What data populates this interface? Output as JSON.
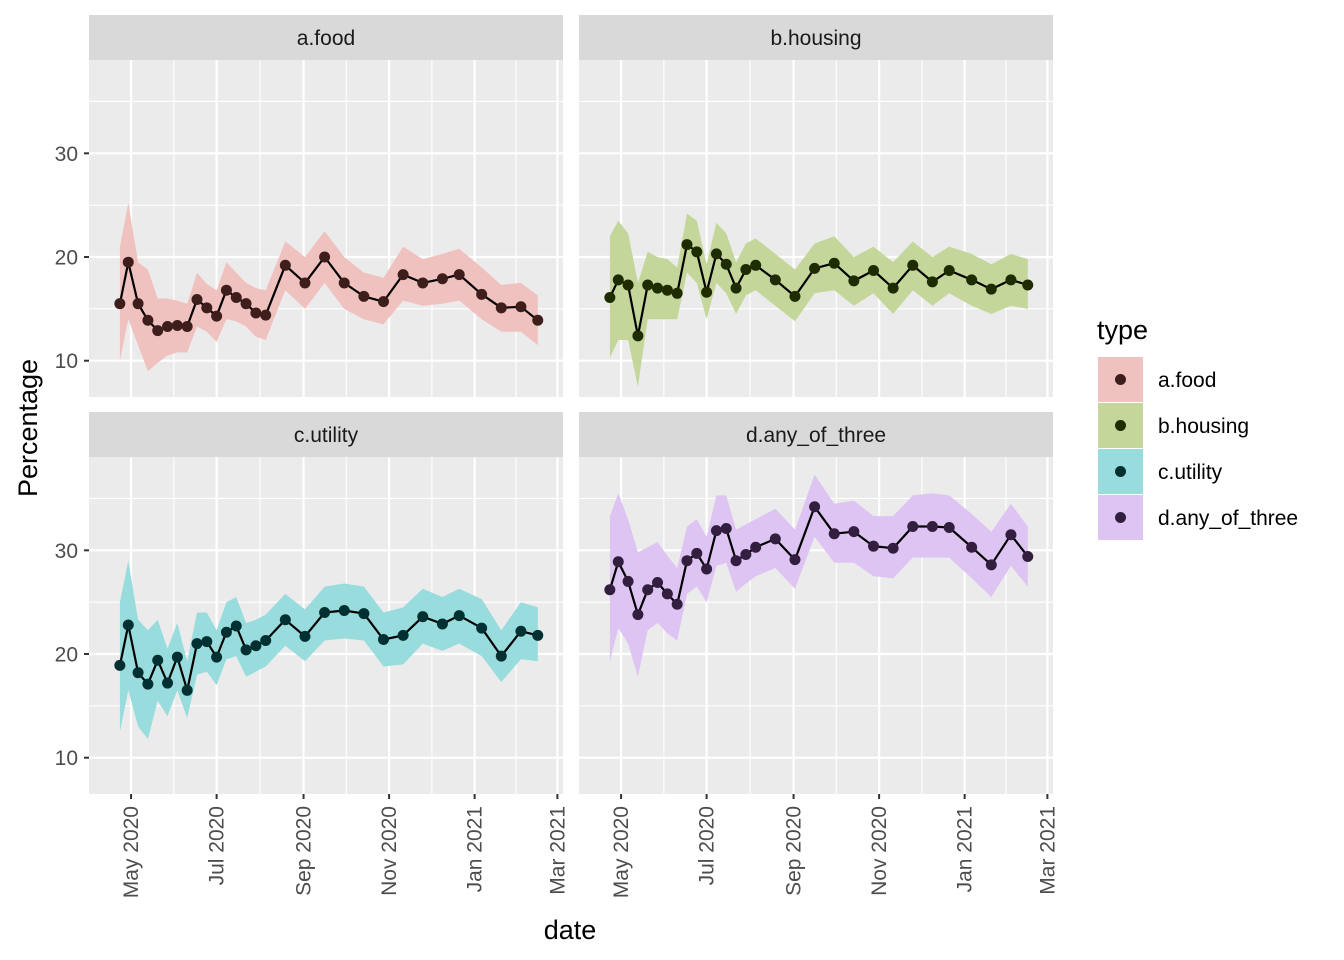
{
  "chart_data": {
    "type": "line",
    "xlabel": "date",
    "ylabel": "Percentage",
    "ylim": [
      6.5,
      39
    ],
    "xlim": [
      "2020-04-01",
      "2021-03-05"
    ],
    "y_ticks": [
      10,
      20,
      30
    ],
    "x_ticks": [
      {
        "date": "2020-05-01",
        "label": "May 2020"
      },
      {
        "date": "2020-07-01",
        "label": "Jul 2020"
      },
      {
        "date": "2020-09-01",
        "label": "Sep 2020"
      },
      {
        "date": "2020-11-01",
        "label": "Nov 2020"
      },
      {
        "date": "2021-01-01",
        "label": "Jan 2021"
      },
      {
        "date": "2021-03-01",
        "label": "Mar 2021"
      }
    ],
    "legend": {
      "title": "type",
      "position": "right"
    },
    "grid": true,
    "panels": [
      {
        "name": "a.food",
        "fill": "#F8766D",
        "points": [
          {
            "x": "2020-04-23",
            "y": 15.5,
            "lo": 10.0,
            "hi": 21.0
          },
          {
            "x": "2020-04-29",
            "y": 19.5,
            "lo": 14.0,
            "hi": 25.2
          },
          {
            "x": "2020-05-06",
            "y": 15.5,
            "lo": 11.5,
            "hi": 19.5
          },
          {
            "x": "2020-05-13",
            "y": 13.9,
            "lo": 9.0,
            "hi": 18.8
          },
          {
            "x": "2020-05-20",
            "y": 12.9,
            "lo": 9.8,
            "hi": 16.0
          },
          {
            "x": "2020-05-27",
            "y": 13.3,
            "lo": 10.5,
            "hi": 16.0
          },
          {
            "x": "2020-06-03",
            "y": 13.4,
            "lo": 10.8,
            "hi": 15.8
          },
          {
            "x": "2020-06-10",
            "y": 13.3,
            "lo": 10.8,
            "hi": 15.5
          },
          {
            "x": "2020-06-17",
            "y": 15.9,
            "lo": 13.3,
            "hi": 18.5
          },
          {
            "x": "2020-06-24",
            "y": 15.1,
            "lo": 12.8,
            "hi": 17.4
          },
          {
            "x": "2020-07-01",
            "y": 14.3,
            "lo": 11.8,
            "hi": 16.8
          },
          {
            "x": "2020-07-08",
            "y": 16.8,
            "lo": 14.0,
            "hi": 19.5
          },
          {
            "x": "2020-07-15",
            "y": 16.1,
            "lo": 13.8,
            "hi": 18.5
          },
          {
            "x": "2020-07-22",
            "y": 15.5,
            "lo": 13.3,
            "hi": 17.5
          },
          {
            "x": "2020-07-29",
            "y": 14.6,
            "lo": 12.3,
            "hi": 17.0
          },
          {
            "x": "2020-08-05",
            "y": 14.4,
            "lo": 12.0,
            "hi": 16.8
          },
          {
            "x": "2020-08-19",
            "y": 19.2,
            "lo": 16.8,
            "hi": 21.5
          },
          {
            "x": "2020-09-02",
            "y": 17.5,
            "lo": 15.0,
            "hi": 20.0
          },
          {
            "x": "2020-09-16",
            "y": 20.0,
            "lo": 17.5,
            "hi": 22.5
          },
          {
            "x": "2020-09-30",
            "y": 17.5,
            "lo": 15.0,
            "hi": 20.0
          },
          {
            "x": "2020-10-14",
            "y": 16.2,
            "lo": 14.0,
            "hi": 18.5
          },
          {
            "x": "2020-10-28",
            "y": 15.7,
            "lo": 13.5,
            "hi": 18.0
          },
          {
            "x": "2020-11-11",
            "y": 18.3,
            "lo": 15.8,
            "hi": 21.0
          },
          {
            "x": "2020-11-25",
            "y": 17.5,
            "lo": 15.3,
            "hi": 19.8
          },
          {
            "x": "2020-12-09",
            "y": 17.9,
            "lo": 15.5,
            "hi": 20.3
          },
          {
            "x": "2020-12-21",
            "y": 18.3,
            "lo": 15.8,
            "hi": 20.8
          },
          {
            "x": "2021-01-06",
            "y": 16.4,
            "lo": 14.0,
            "hi": 19.0
          },
          {
            "x": "2021-01-20",
            "y": 15.1,
            "lo": 12.8,
            "hi": 17.3
          },
          {
            "x": "2021-02-03",
            "y": 15.2,
            "lo": 12.8,
            "hi": 17.5
          },
          {
            "x": "2021-02-15",
            "y": 13.9,
            "lo": 11.5,
            "hi": 16.3
          }
        ]
      },
      {
        "name": "b.housing",
        "fill": "#7CAE00",
        "points": [
          {
            "x": "2020-04-23",
            "y": 16.1,
            "lo": 10.3,
            "hi": 22.0
          },
          {
            "x": "2020-04-29",
            "y": 17.8,
            "lo": 12.0,
            "hi": 23.5
          },
          {
            "x": "2020-05-06",
            "y": 17.3,
            "lo": 12.0,
            "hi": 22.3
          },
          {
            "x": "2020-05-13",
            "y": 12.4,
            "lo": 7.5,
            "hi": 17.5
          },
          {
            "x": "2020-05-20",
            "y": 17.3,
            "lo": 14.0,
            "hi": 20.5
          },
          {
            "x": "2020-05-27",
            "y": 17.0,
            "lo": 14.0,
            "hi": 20.0
          },
          {
            "x": "2020-06-03",
            "y": 16.8,
            "lo": 14.0,
            "hi": 19.8
          },
          {
            "x": "2020-06-10",
            "y": 16.5,
            "lo": 14.0,
            "hi": 19.0
          },
          {
            "x": "2020-06-17",
            "y": 21.2,
            "lo": 18.5,
            "hi": 24.2
          },
          {
            "x": "2020-06-24",
            "y": 20.5,
            "lo": 17.5,
            "hi": 23.5
          },
          {
            "x": "2020-07-01",
            "y": 16.6,
            "lo": 14.0,
            "hi": 19.3
          },
          {
            "x": "2020-07-08",
            "y": 20.3,
            "lo": 17.5,
            "hi": 23.3
          },
          {
            "x": "2020-07-15",
            "y": 19.3,
            "lo": 16.5,
            "hi": 22.3
          },
          {
            "x": "2020-07-22",
            "y": 17.0,
            "lo": 14.5,
            "hi": 19.5
          },
          {
            "x": "2020-07-29",
            "y": 18.8,
            "lo": 16.3,
            "hi": 21.3
          },
          {
            "x": "2020-08-05",
            "y": 19.2,
            "lo": 16.8,
            "hi": 21.8
          },
          {
            "x": "2020-08-19",
            "y": 17.8,
            "lo": 15.3,
            "hi": 20.3
          },
          {
            "x": "2020-09-02",
            "y": 16.2,
            "lo": 13.8,
            "hi": 18.8
          },
          {
            "x": "2020-09-16",
            "y": 18.9,
            "lo": 16.5,
            "hi": 21.3
          },
          {
            "x": "2020-09-30",
            "y": 19.4,
            "lo": 16.8,
            "hi": 22.0
          },
          {
            "x": "2020-10-14",
            "y": 17.7,
            "lo": 15.3,
            "hi": 20.0
          },
          {
            "x": "2020-10-28",
            "y": 18.7,
            "lo": 16.5,
            "hi": 21.0
          },
          {
            "x": "2020-11-11",
            "y": 17.0,
            "lo": 14.5,
            "hi": 19.5
          },
          {
            "x": "2020-11-25",
            "y": 19.2,
            "lo": 16.8,
            "hi": 21.5
          },
          {
            "x": "2020-12-09",
            "y": 17.6,
            "lo": 15.3,
            "hi": 20.0
          },
          {
            "x": "2020-12-21",
            "y": 18.7,
            "lo": 16.5,
            "hi": 21.0
          },
          {
            "x": "2021-01-06",
            "y": 17.8,
            "lo": 15.3,
            "hi": 20.3
          },
          {
            "x": "2021-01-20",
            "y": 16.9,
            "lo": 14.5,
            "hi": 19.3
          },
          {
            "x": "2021-02-03",
            "y": 17.8,
            "lo": 15.3,
            "hi": 20.3
          },
          {
            "x": "2021-02-15",
            "y": 17.3,
            "lo": 15.0,
            "hi": 19.8
          }
        ]
      },
      {
        "name": "c.utility",
        "fill": "#00BFC4",
        "points": [
          {
            "x": "2020-04-23",
            "y": 18.9,
            "lo": 12.5,
            "hi": 25.0
          },
          {
            "x": "2020-04-29",
            "y": 22.8,
            "lo": 16.5,
            "hi": 29.0
          },
          {
            "x": "2020-05-06",
            "y": 18.2,
            "lo": 13.0,
            "hi": 23.3
          },
          {
            "x": "2020-05-13",
            "y": 17.1,
            "lo": 11.8,
            "hi": 22.3
          },
          {
            "x": "2020-05-20",
            "y": 19.4,
            "lo": 15.5,
            "hi": 23.3
          },
          {
            "x": "2020-05-27",
            "y": 17.2,
            "lo": 14.0,
            "hi": 20.5
          },
          {
            "x": "2020-06-03",
            "y": 19.7,
            "lo": 16.5,
            "hi": 23.0
          },
          {
            "x": "2020-06-10",
            "y": 16.5,
            "lo": 13.8,
            "hi": 19.3
          },
          {
            "x": "2020-06-17",
            "y": 21.0,
            "lo": 18.0,
            "hi": 24.0
          },
          {
            "x": "2020-06-24",
            "y": 21.2,
            "lo": 18.3,
            "hi": 24.0
          },
          {
            "x": "2020-07-01",
            "y": 19.7,
            "lo": 17.0,
            "hi": 22.3
          },
          {
            "x": "2020-07-08",
            "y": 22.1,
            "lo": 19.5,
            "hi": 25.0
          },
          {
            "x": "2020-07-15",
            "y": 22.7,
            "lo": 19.8,
            "hi": 25.5
          },
          {
            "x": "2020-07-22",
            "y": 20.4,
            "lo": 17.8,
            "hi": 23.0
          },
          {
            "x": "2020-07-29",
            "y": 20.8,
            "lo": 18.3,
            "hi": 23.3
          },
          {
            "x": "2020-08-05",
            "y": 21.3,
            "lo": 18.8,
            "hi": 23.8
          },
          {
            "x": "2020-08-19",
            "y": 23.3,
            "lo": 20.8,
            "hi": 25.8
          },
          {
            "x": "2020-09-02",
            "y": 21.7,
            "lo": 19.3,
            "hi": 24.3
          },
          {
            "x": "2020-09-16",
            "y": 24.0,
            "lo": 21.3,
            "hi": 26.5
          },
          {
            "x": "2020-09-30",
            "y": 24.2,
            "lo": 21.5,
            "hi": 26.8
          },
          {
            "x": "2020-10-14",
            "y": 23.9,
            "lo": 21.3,
            "hi": 26.5
          },
          {
            "x": "2020-10-28",
            "y": 21.4,
            "lo": 18.8,
            "hi": 24.0
          },
          {
            "x": "2020-11-11",
            "y": 21.8,
            "lo": 19.0,
            "hi": 24.5
          },
          {
            "x": "2020-11-25",
            "y": 23.6,
            "lo": 21.0,
            "hi": 26.3
          },
          {
            "x": "2020-12-09",
            "y": 22.9,
            "lo": 20.3,
            "hi": 25.5
          },
          {
            "x": "2020-12-21",
            "y": 23.7,
            "lo": 21.0,
            "hi": 26.3
          },
          {
            "x": "2021-01-06",
            "y": 22.5,
            "lo": 19.8,
            "hi": 25.3
          },
          {
            "x": "2021-01-20",
            "y": 19.8,
            "lo": 17.3,
            "hi": 22.3
          },
          {
            "x": "2021-02-03",
            "y": 22.2,
            "lo": 19.5,
            "hi": 25.0
          },
          {
            "x": "2021-02-15",
            "y": 21.8,
            "lo": 19.3,
            "hi": 24.5
          }
        ]
      },
      {
        "name": "d.any_of_three",
        "fill": "#C77CFF",
        "points": [
          {
            "x": "2020-04-23",
            "y": 26.2,
            "lo": 19.3,
            "hi": 33.3
          },
          {
            "x": "2020-04-29",
            "y": 28.9,
            "lo": 22.5,
            "hi": 35.5
          },
          {
            "x": "2020-05-06",
            "y": 27.0,
            "lo": 21.0,
            "hi": 33.0
          },
          {
            "x": "2020-05-13",
            "y": 23.8,
            "lo": 17.8,
            "hi": 29.8
          },
          {
            "x": "2020-05-20",
            "y": 26.2,
            "lo": 22.3,
            "hi": 30.3
          },
          {
            "x": "2020-05-27",
            "y": 26.9,
            "lo": 23.0,
            "hi": 30.8
          },
          {
            "x": "2020-06-03",
            "y": 25.8,
            "lo": 22.0,
            "hi": 29.5
          },
          {
            "x": "2020-06-10",
            "y": 24.8,
            "lo": 21.3,
            "hi": 28.3
          },
          {
            "x": "2020-06-17",
            "y": 29.0,
            "lo": 25.8,
            "hi": 32.3
          },
          {
            "x": "2020-06-24",
            "y": 29.7,
            "lo": 26.5,
            "hi": 33.0
          },
          {
            "x": "2020-07-01",
            "y": 28.2,
            "lo": 25.0,
            "hi": 31.3
          },
          {
            "x": "2020-07-08",
            "y": 31.9,
            "lo": 28.5,
            "hi": 35.3
          },
          {
            "x": "2020-07-15",
            "y": 32.1,
            "lo": 28.8,
            "hi": 35.3
          },
          {
            "x": "2020-07-22",
            "y": 29.0,
            "lo": 26.0,
            "hi": 32.0
          },
          {
            "x": "2020-07-29",
            "y": 29.6,
            "lo": 26.8,
            "hi": 32.5
          },
          {
            "x": "2020-08-05",
            "y": 30.3,
            "lo": 27.5,
            "hi": 33.0
          },
          {
            "x": "2020-08-19",
            "y": 31.1,
            "lo": 28.3,
            "hi": 34.0
          },
          {
            "x": "2020-09-02",
            "y": 29.1,
            "lo": 26.3,
            "hi": 32.0
          },
          {
            "x": "2020-09-16",
            "y": 34.2,
            "lo": 31.3,
            "hi": 37.3
          },
          {
            "x": "2020-09-30",
            "y": 31.6,
            "lo": 28.8,
            "hi": 34.5
          },
          {
            "x": "2020-10-14",
            "y": 31.8,
            "lo": 28.8,
            "hi": 34.8
          },
          {
            "x": "2020-10-28",
            "y": 30.4,
            "lo": 27.5,
            "hi": 33.3
          },
          {
            "x": "2020-11-11",
            "y": 30.2,
            "lo": 27.3,
            "hi": 33.3
          },
          {
            "x": "2020-11-25",
            "y": 32.3,
            "lo": 29.3,
            "hi": 35.3
          },
          {
            "x": "2020-12-09",
            "y": 32.3,
            "lo": 29.3,
            "hi": 35.5
          },
          {
            "x": "2020-12-21",
            "y": 32.2,
            "lo": 29.3,
            "hi": 35.3
          },
          {
            "x": "2021-01-06",
            "y": 30.3,
            "lo": 27.3,
            "hi": 33.5
          },
          {
            "x": "2021-01-20",
            "y": 28.6,
            "lo": 25.5,
            "hi": 31.8
          },
          {
            "x": "2021-02-03",
            "y": 31.5,
            "lo": 28.5,
            "hi": 34.5
          },
          {
            "x": "2021-02-15",
            "y": 29.4,
            "lo": 26.5,
            "hi": 32.3
          }
        ]
      }
    ]
  }
}
